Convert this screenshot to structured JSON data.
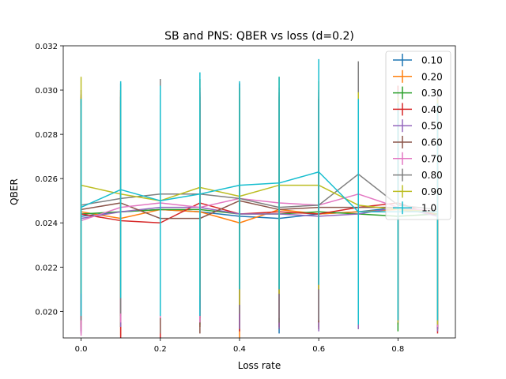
{
  "chart_data": {
    "type": "line",
    "title": "SB and PNS: QBER vs loss (d=0.2)",
    "xlabel": "Loss rate",
    "ylabel": "QBER",
    "xlim": [
      -0.045,
      0.945
    ],
    "ylim": [
      0.0188,
      0.032
    ],
    "xticks": [
      0.0,
      0.2,
      0.4,
      0.6,
      0.8
    ],
    "xtick_labels": [
      "0.0",
      "0.2",
      "0.4",
      "0.6",
      "0.8"
    ],
    "yticks": [
      0.02,
      0.022,
      0.024,
      0.026,
      0.028,
      0.03,
      0.032
    ],
    "ytick_labels": [
      "0.020",
      "0.022",
      "0.024",
      "0.026",
      "0.028",
      "0.030",
      "0.032"
    ],
    "grid": false,
    "legend_position": "top-right",
    "error_bars": true,
    "x": [
      0.0,
      0.1,
      0.2,
      0.3,
      0.4,
      0.5,
      0.6,
      0.7,
      0.8,
      0.9
    ],
    "series": [
      {
        "name": "0.10",
        "color": "#1f77b4",
        "values": [
          0.0243,
          0.0245,
          0.0246,
          0.0245,
          0.0243,
          0.0242,
          0.0244,
          0.0245,
          0.0247,
          0.0244
        ],
        "err": [
          0.0052,
          0.0052,
          0.0052,
          0.0052,
          0.0052,
          0.0052,
          0.0052,
          0.0052,
          0.0052,
          0.0052
        ]
      },
      {
        "name": "0.20",
        "color": "#ff7f0e",
        "values": [
          0.0245,
          0.0242,
          0.0246,
          0.0245,
          0.024,
          0.0246,
          0.0244,
          0.0245,
          0.0246,
          0.0244
        ],
        "err": [
          0.0052,
          0.0053,
          0.0052,
          0.0052,
          0.0052,
          0.0052,
          0.0052,
          0.0051,
          0.0052,
          0.0052
        ]
      },
      {
        "name": "0.30",
        "color": "#2ca02c",
        "values": [
          0.0244,
          0.0245,
          0.0246,
          0.0246,
          0.0244,
          0.0244,
          0.0245,
          0.0244,
          0.0243,
          0.0244
        ],
        "err": [
          0.0052,
          0.0052,
          0.0052,
          0.0052,
          0.0052,
          0.0052,
          0.0052,
          0.0052,
          0.0052,
          0.0052
        ]
      },
      {
        "name": "0.40",
        "color": "#d62728",
        "values": [
          0.0244,
          0.0241,
          0.024,
          0.0249,
          0.0244,
          0.0245,
          0.0244,
          0.0247,
          0.0249,
          0.0243
        ],
        "err": [
          0.0053,
          0.0053,
          0.0053,
          0.0052,
          0.0053,
          0.0052,
          0.0052,
          0.0052,
          0.0053,
          0.0053
        ]
      },
      {
        "name": "0.50",
        "color": "#9467bd",
        "values": [
          0.0242,
          0.0245,
          0.0247,
          0.0247,
          0.0244,
          0.0244,
          0.0243,
          0.0244,
          0.0247,
          0.0243
        ],
        "err": [
          0.0052,
          0.0052,
          0.0052,
          0.0052,
          0.0052,
          0.0052,
          0.0052,
          0.0052,
          0.0052,
          0.0052
        ]
      },
      {
        "name": "0.60",
        "color": "#8c564b",
        "values": [
          0.0246,
          0.0249,
          0.0242,
          0.0242,
          0.025,
          0.0246,
          0.0247,
          0.0247,
          0.0247,
          0.0245
        ],
        "err": [
          0.0052,
          0.0051,
          0.0052,
          0.0052,
          0.0051,
          0.0051,
          0.0052,
          0.0051,
          0.0052,
          0.0052
        ]
      },
      {
        "name": "0.70",
        "color": "#e377c2",
        "values": [
          0.0241,
          0.0247,
          0.0249,
          0.0247,
          0.0251,
          0.0249,
          0.0248,
          0.0253,
          0.0247,
          0.0245
        ],
        "err": [
          0.0052,
          0.0052,
          0.0052,
          0.0052,
          0.0052,
          0.0052,
          0.0052,
          0.0052,
          0.0052,
          0.0052
        ]
      },
      {
        "name": "0.80",
        "color": "#7f7f7f",
        "values": [
          0.0248,
          0.0251,
          0.0253,
          0.0253,
          0.0251,
          0.0247,
          0.0248,
          0.0262,
          0.0248,
          0.0246
        ],
        "err": [
          0.0052,
          0.0052,
          0.0052,
          0.0052,
          0.0052,
          0.0052,
          0.0052,
          0.0051,
          0.0052,
          0.0052
        ]
      },
      {
        "name": "0.90",
        "color": "#bcbd22",
        "values": [
          0.0257,
          0.0253,
          0.025,
          0.0256,
          0.0252,
          0.0257,
          0.0257,
          0.0248,
          0.0246,
          0.0245
        ],
        "err": [
          0.0049,
          0.0047,
          0.0049,
          0.0049,
          0.0049,
          0.0049,
          0.0047,
          0.0051,
          0.0051,
          0.0051
        ]
      },
      {
        "name": "1.0",
        "color": "#17becf",
        "values": [
          0.0247,
          0.0255,
          0.025,
          0.0253,
          0.0257,
          0.0258,
          0.0263,
          0.0245,
          0.0245,
          0.0245
        ],
        "err": [
          0.0049,
          0.0049,
          0.0052,
          0.0055,
          0.0047,
          0.0048,
          0.0051,
          0.0051,
          0.0049,
          0.0049
        ]
      }
    ]
  }
}
